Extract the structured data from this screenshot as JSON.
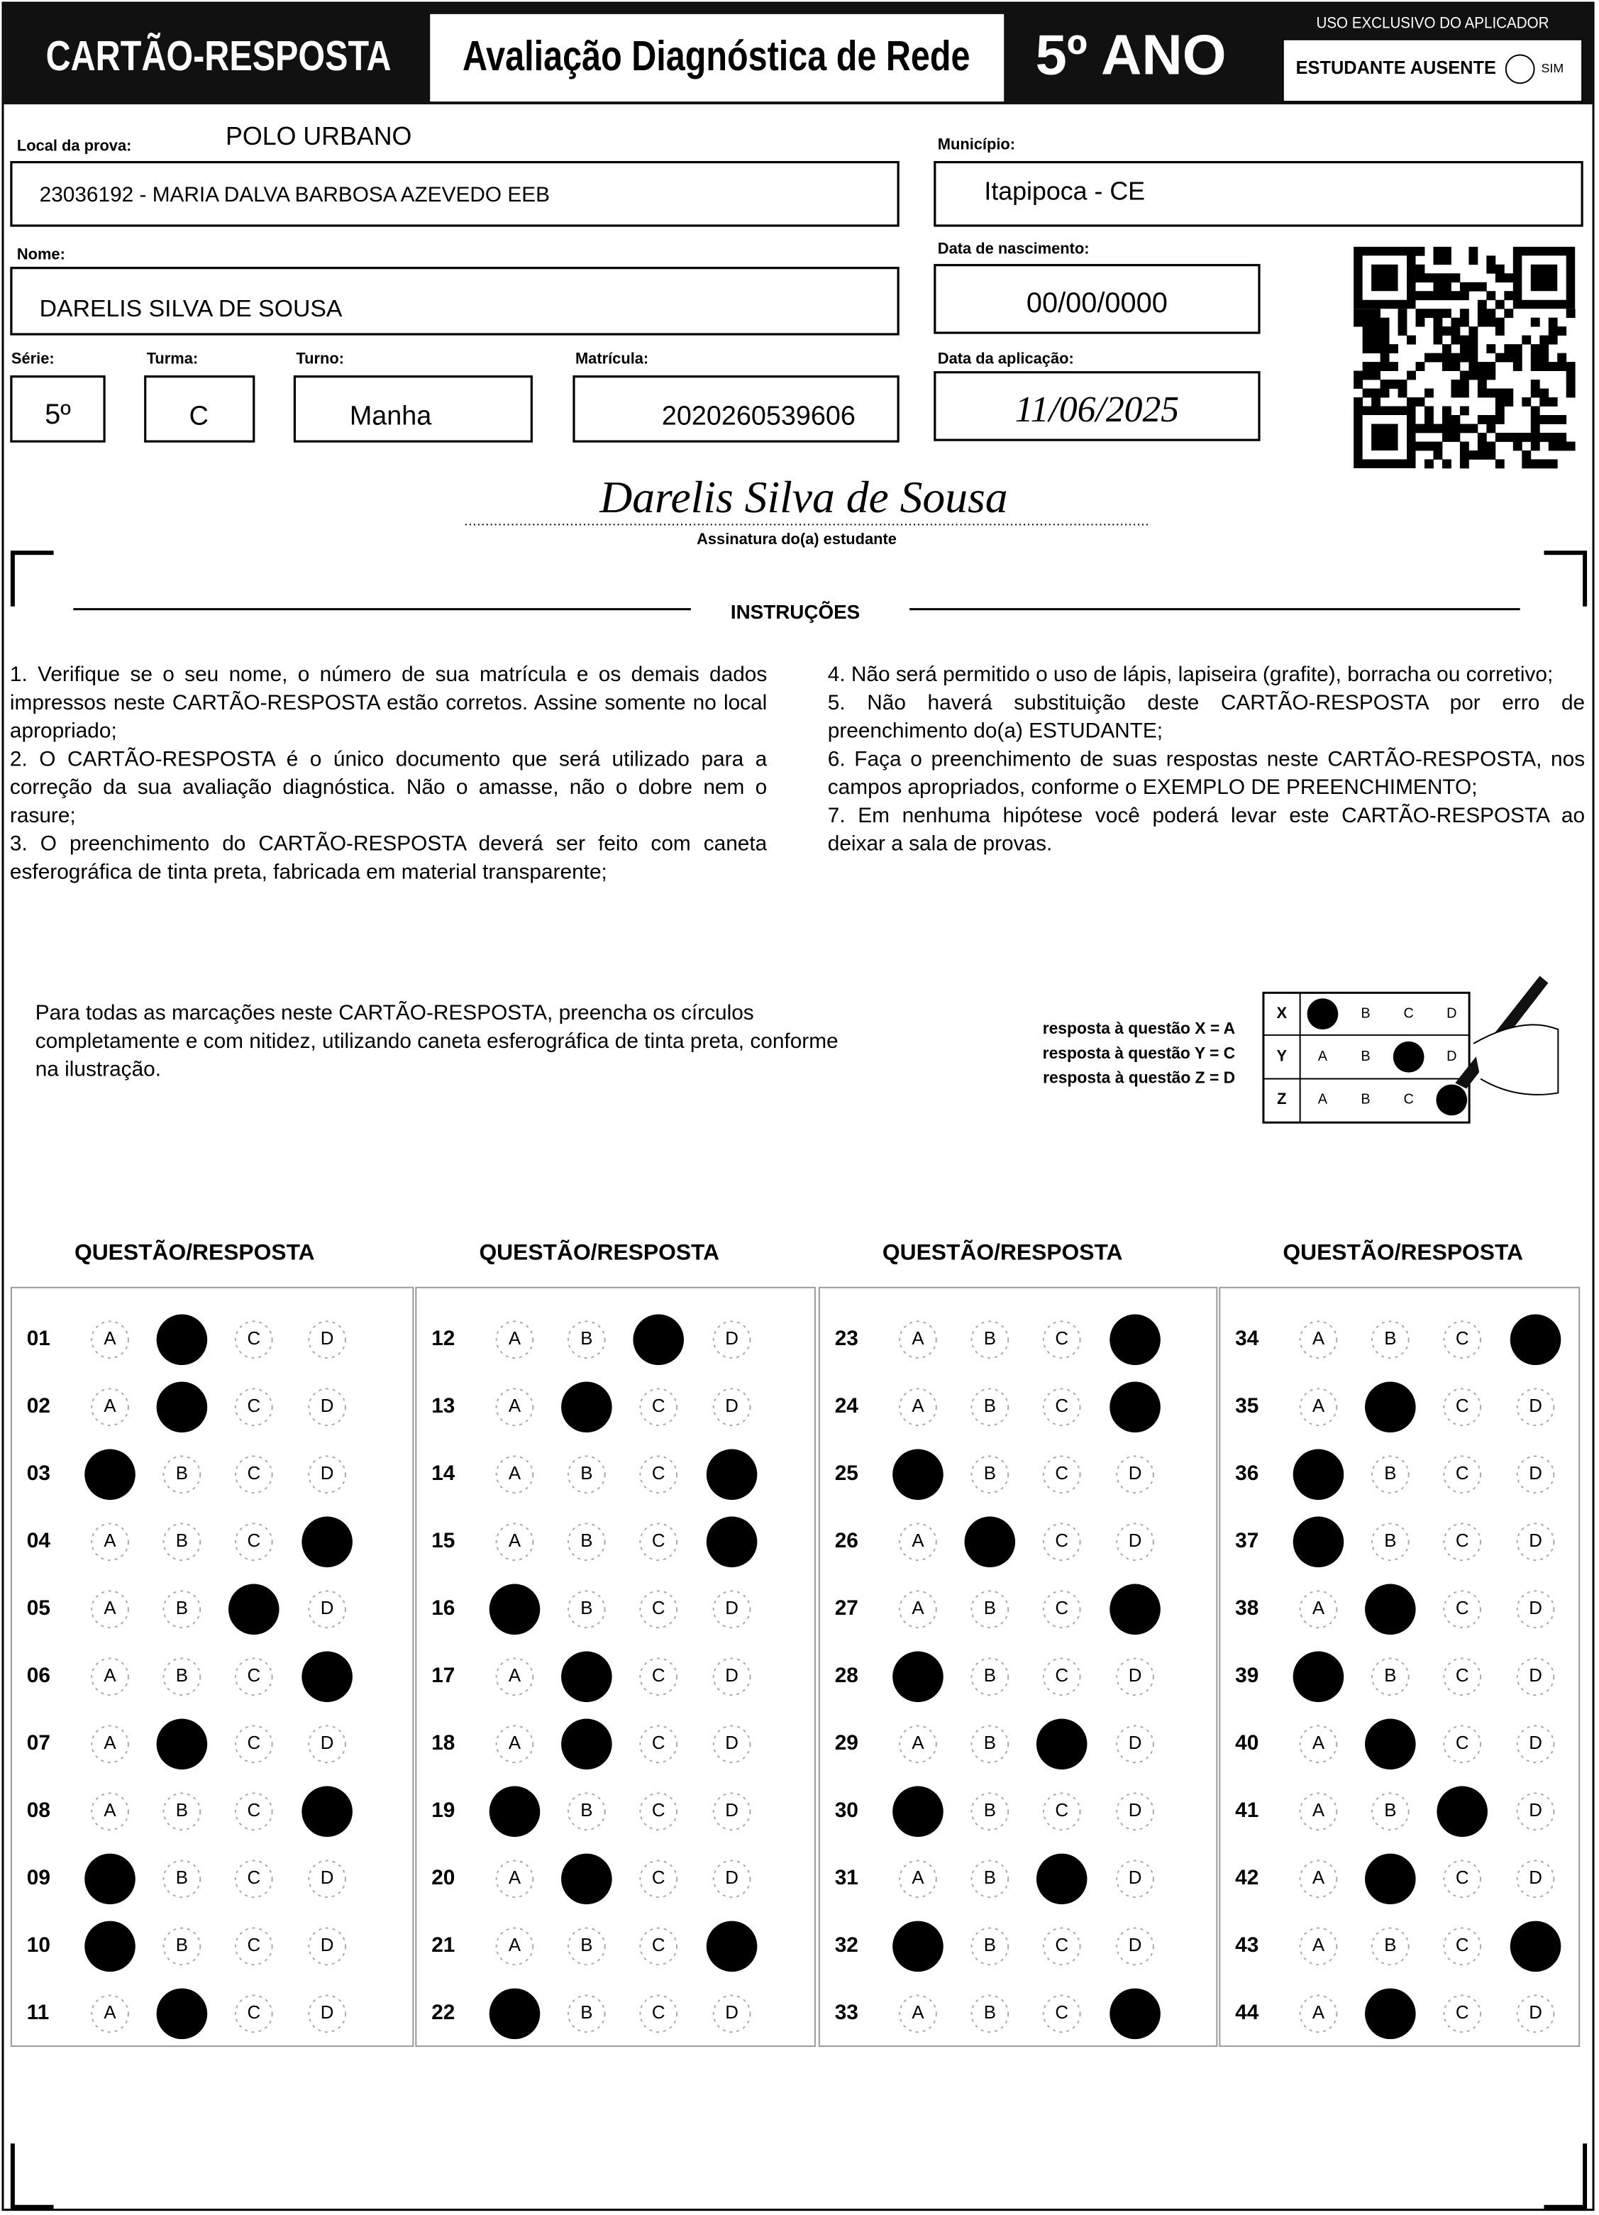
{
  "header": {
    "title": "CARTÃO-RESPOSTA",
    "subtitle": "Avaliação Diagnóstica de Rede",
    "grade": "5º ANO",
    "applicator_label": "USO EXCLUSIVO DO APLICADOR",
    "absent_label": "ESTUDANTE AUSENTE",
    "absent_option": "SIM"
  },
  "fields": {
    "local_label": "Local da prova:",
    "local_value": "POLO URBANO",
    "school": "23036192 - MARIA DALVA BARBOSA AZEVEDO EEB",
    "municipio_label": "Município:",
    "municipio": "Itapipoca - CE",
    "nome_label": "Nome:",
    "nome": "DARELIS SILVA DE SOUSA",
    "nascimento_label": "Data de nascimento:",
    "nascimento": "00/00/0000",
    "serie_label": "Série:",
    "serie": "5º",
    "turma_label": "Turma:",
    "turma": "C",
    "turno_label": "Turno:",
    "turno": "Manha",
    "matricula_label": "Matrícula:",
    "matricula": "2020260539606",
    "aplicacao_label": "Data da aplicação:",
    "aplicacao": "11/06/2025"
  },
  "signature": {
    "text": "Darelis Silva de Sousa",
    "caption": "Assinatura do(a) estudante"
  },
  "instructions": {
    "title": "INSTRUÇÕES",
    "items": [
      "1. Verifique se o seu nome, o número de sua matrícula e os demais dados impressos neste CARTÃO-RESPOSTA estão corretos. Assine somente no local apropriado;",
      "2. O CARTÃO-RESPOSTA é o único documento que será utilizado para a correção da sua avaliação diagnóstica. Não o amasse, não o dobre nem o rasure;",
      "3. O preenchimento do CARTÃO-RESPOSTA deverá ser feito com caneta esferográfica de tinta preta, fabricada em material transparente;",
      "4. Não será permitido o uso de lápis, lapiseira (grafite), borracha ou corretivo;",
      "5. Não haverá substituição deste CARTÃO-RESPOSTA por erro de preenchimento do(a) ESTUDANTE;",
      "6. Faça o preenchimento de suas respostas neste CARTÃO-RESPOSTA, nos campos apropriados, conforme o EXEMPLO DE PREENCHIMENTO;",
      "7. Em nenhuma hipótese você poderá levar este CARTÃO-RESPOSTA ao deixar a sala de provas."
    ]
  },
  "fill_instructions": "Para todas as marcações neste CARTÃO-RESPOSTA, preencha os círculos completamente e com nitidez, utilizando caneta esferográfica de tinta preta, conforme na ilustração.",
  "example": {
    "legend": [
      "resposta à questão X = A",
      "resposta à questão Y = C",
      "resposta à questão Z = D"
    ],
    "rows": [
      {
        "label": "X",
        "marked": 0
      },
      {
        "label": "Y",
        "marked": 2
      },
      {
        "label": "Z",
        "marked": 3
      }
    ]
  },
  "answers": {
    "section_title": "QUESTÃO/RESPOSTA",
    "options": [
      "A",
      "B",
      "C",
      "D"
    ],
    "questions": [
      {
        "number": "01",
        "marked": 1
      },
      {
        "number": "02",
        "marked": 1
      },
      {
        "number": "03",
        "marked": 0
      },
      {
        "number": "04",
        "marked": 3
      },
      {
        "number": "05",
        "marked": 2
      },
      {
        "number": "06",
        "marked": 3
      },
      {
        "number": "07",
        "marked": 1
      },
      {
        "number": "08",
        "marked": 3
      },
      {
        "number": "09",
        "marked": 0
      },
      {
        "number": "10",
        "marked": 0
      },
      {
        "number": "11",
        "marked": 1
      },
      {
        "number": "12",
        "marked": 2
      },
      {
        "number": "13",
        "marked": 1
      },
      {
        "number": "14",
        "marked": 3
      },
      {
        "number": "15",
        "marked": 3
      },
      {
        "number": "16",
        "marked": 0
      },
      {
        "number": "17",
        "marked": 1
      },
      {
        "number": "18",
        "marked": 1
      },
      {
        "number": "19",
        "marked": 0
      },
      {
        "number": "20",
        "marked": 1
      },
      {
        "number": "21",
        "marked": 3
      },
      {
        "number": "22",
        "marked": 0
      },
      {
        "number": "23",
        "marked": 3
      },
      {
        "number": "24",
        "marked": 3
      },
      {
        "number": "25",
        "marked": 0
      },
      {
        "number": "26",
        "marked": 1
      },
      {
        "number": "27",
        "marked": 3
      },
      {
        "number": "28",
        "marked": 0
      },
      {
        "number": "29",
        "marked": 2
      },
      {
        "number": "30",
        "marked": 0
      },
      {
        "number": "31",
        "marked": 2
      },
      {
        "number": "32",
        "marked": 0
      },
      {
        "number": "33",
        "marked": 3
      },
      {
        "number": "34",
        "marked": 3
      },
      {
        "number": "35",
        "marked": 1
      },
      {
        "number": "36",
        "marked": 0
      },
      {
        "number": "37",
        "marked": 0
      },
      {
        "number": "38",
        "marked": 1
      },
      {
        "number": "39",
        "marked": 0
      },
      {
        "number": "40",
        "marked": 1
      },
      {
        "number": "41",
        "marked": 2
      },
      {
        "number": "42",
        "marked": 1
      },
      {
        "number": "43",
        "marked": 3
      },
      {
        "number": "44",
        "marked": 1
      }
    ]
  }
}
